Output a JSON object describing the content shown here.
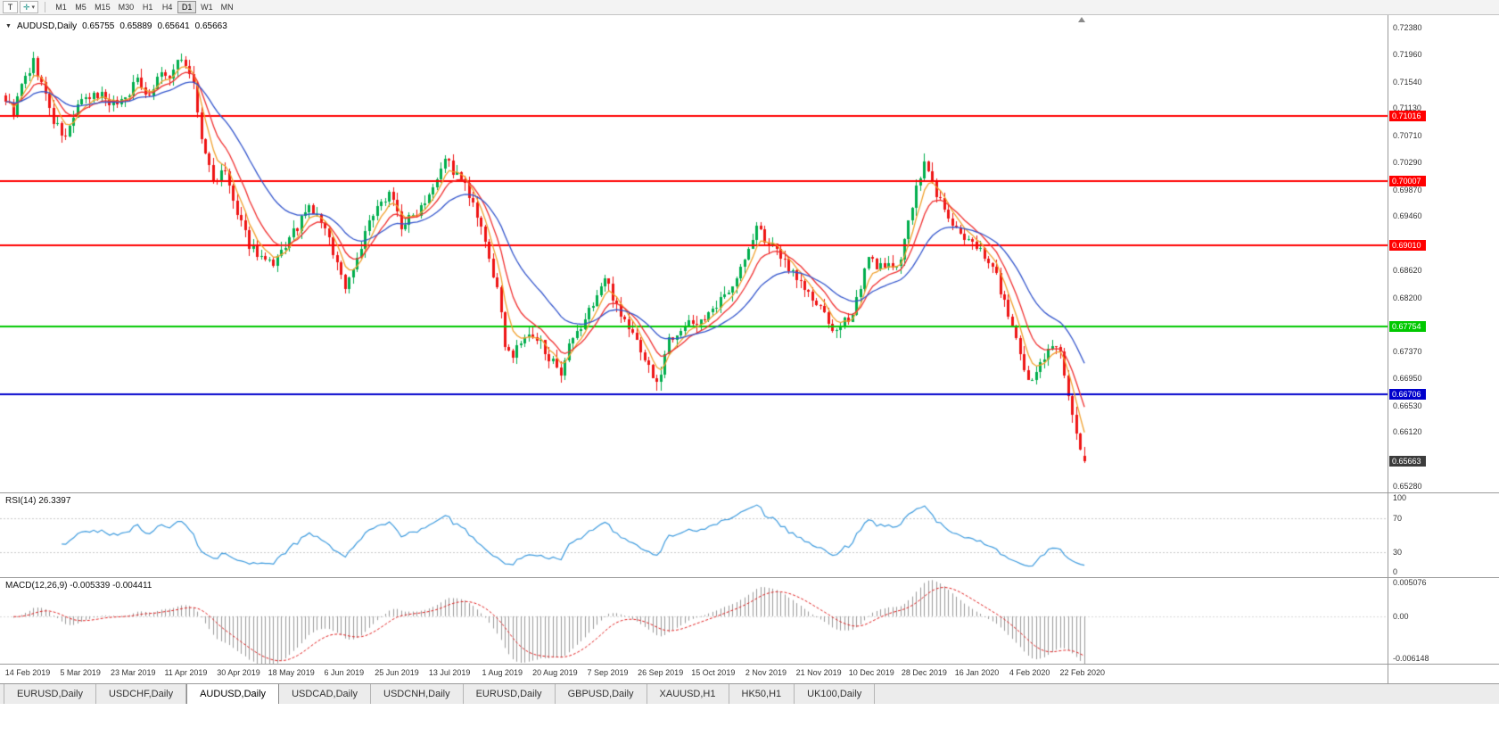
{
  "toolbar": {
    "text_tool_label": "T",
    "pointer_tool_glyph": "✛",
    "dropdown_glyph": "▾",
    "timeframes": [
      {
        "label": "M1"
      },
      {
        "label": "M5"
      },
      {
        "label": "M15"
      },
      {
        "label": "M30"
      },
      {
        "label": "H1"
      },
      {
        "label": "H4"
      },
      {
        "label": "D1",
        "active": true
      },
      {
        "label": "W1"
      },
      {
        "label": "MN"
      }
    ]
  },
  "chart": {
    "collapse_glyph": "▼",
    "symbol_title": "AUDUSD,Daily",
    "ohlc": {
      "open": "0.65755",
      "high": "0.65889",
      "low": "0.65641",
      "close": "0.65663"
    },
    "price_axis_labels": [
      {
        "text": "0.72380",
        "price": 0.7238
      },
      {
        "text": "0.71960",
        "price": 0.7196
      },
      {
        "text": "0.71540",
        "price": 0.7154
      },
      {
        "text": "0.71130",
        "price": 0.7113
      },
      {
        "text": "0.70710",
        "price": 0.7071
      },
      {
        "text": "0.70290",
        "price": 0.7029
      },
      {
        "text": "0.69870",
        "price": 0.6987
      },
      {
        "text": "0.69460",
        "price": 0.6946
      },
      {
        "text": "0.68620",
        "price": 0.6862
      },
      {
        "text": "0.68200",
        "price": 0.682
      },
      {
        "text": "0.67370",
        "price": 0.6737
      },
      {
        "text": "0.66950",
        "price": 0.6695
      },
      {
        "text": "0.66530",
        "price": 0.6653
      },
      {
        "text": "0.66120",
        "price": 0.6612
      },
      {
        "text": "0.65280",
        "price": 0.6528
      }
    ]
  },
  "rsi": {
    "label": "RSI(14) 26.3397",
    "axis_labels": [
      {
        "text": "100",
        "value": 100
      },
      {
        "text": "70",
        "value": 70
      },
      {
        "text": "30",
        "value": 30
      },
      {
        "text": "0",
        "value": 0
      }
    ]
  },
  "macd": {
    "label": "MACD(12,26,9) -0.005339 -0.004411",
    "axis_labels": [
      {
        "text": "0.005076",
        "value": 0.005076
      },
      {
        "text": "0.00",
        "value": 0
      },
      {
        "text": "-0.006148",
        "value": -0.006148
      }
    ]
  },
  "date_axis": {
    "labels": [
      "14 Feb 2019",
      "5 Mar 2019",
      "23 Mar 2019",
      "11 Apr 2019",
      "30 Apr 2019",
      "18 May 2019",
      "6 Jun 2019",
      "25 Jun 2019",
      "13 Jul 2019",
      "1 Aug 2019",
      "20 Aug 2019",
      "7 Sep 2019",
      "26 Sep 2019",
      "15 Oct 2019",
      "2 Nov 2019",
      "21 Nov 2019",
      "10 Dec 2019",
      "28 Dec 2019",
      "16 Jan 2020",
      "4 Feb 2020",
      "22 Feb 2020"
    ]
  },
  "tabs": [
    {
      "label": "EURUSD,Daily"
    },
    {
      "label": "USDCHF,Daily"
    },
    {
      "label": "AUDUSD,Daily",
      "active": true
    },
    {
      "label": "USDCAD,Daily"
    },
    {
      "label": "USDCNH,Daily"
    },
    {
      "label": "EURUSD,Daily"
    },
    {
      "label": "GBPUSD,Daily"
    },
    {
      "label": "XAUUSD,H1"
    },
    {
      "label": "HK50,H1"
    },
    {
      "label": "UK100,Daily"
    }
  ],
  "chart_data": {
    "type": "candlestick",
    "symbol": "AUDUSD",
    "timeframe": "Daily",
    "bars": 271,
    "seed": 9,
    "price_range": [
      0.65184,
      0.72573
    ],
    "candle_colors": {
      "up": "#00AE4D",
      "down": "#EE1414"
    },
    "noise": {
      "close": 0.0008,
      "wick": 0.0013
    },
    "close_anchors": [
      [
        0,
        0.7128
      ],
      [
        2,
        0.7106
      ],
      [
        4,
        0.7148
      ],
      [
        7,
        0.7184
      ],
      [
        9,
        0.7152
      ],
      [
        12,
        0.7092
      ],
      [
        15,
        0.7066
      ],
      [
        18,
        0.7118
      ],
      [
        21,
        0.7128
      ],
      [
        24,
        0.7136
      ],
      [
        27,
        0.712
      ],
      [
        30,
        0.713
      ],
      [
        33,
        0.7158
      ],
      [
        36,
        0.7133
      ],
      [
        39,
        0.7172
      ],
      [
        41,
        0.7152
      ],
      [
        43,
        0.7193
      ],
      [
        45,
        0.7182
      ],
      [
        47,
        0.7148
      ],
      [
        49,
        0.7064
      ],
      [
        52,
        0.7002
      ],
      [
        55,
        0.7014
      ],
      [
        58,
        0.6946
      ],
      [
        61,
        0.6903
      ],
      [
        64,
        0.6882
      ],
      [
        67,
        0.6866
      ],
      [
        70,
        0.6901
      ],
      [
        73,
        0.6929
      ],
      [
        76,
        0.6959
      ],
      [
        79,
        0.6939
      ],
      [
        82,
        0.6892
      ],
      [
        85,
        0.6836
      ],
      [
        88,
        0.6882
      ],
      [
        91,
        0.6936
      ],
      [
        94,
        0.6963
      ],
      [
        96,
        0.6989
      ],
      [
        99,
        0.6931
      ],
      [
        102,
        0.6946
      ],
      [
        105,
        0.6973
      ],
      [
        108,
        0.7009
      ],
      [
        110,
        0.7039
      ],
      [
        112,
        0.7016
      ],
      [
        115,
        0.6993
      ],
      [
        118,
        0.6943
      ],
      [
        121,
        0.6881
      ],
      [
        123,
        0.683
      ],
      [
        125,
        0.675
      ],
      [
        127,
        0.673
      ],
      [
        130,
        0.676
      ],
      [
        134,
        0.6749
      ],
      [
        137,
        0.6719
      ],
      [
        139,
        0.6693
      ],
      [
        141,
        0.6743
      ],
      [
        144,
        0.6773
      ],
      [
        147,
        0.6813
      ],
      [
        150,
        0.6849
      ],
      [
        152,
        0.6823
      ],
      [
        155,
        0.6783
      ],
      [
        158,
        0.6753
      ],
      [
        161,
        0.6713
      ],
      [
        163,
        0.6683
      ],
      [
        166,
        0.6756
      ],
      [
        169,
        0.6773
      ],
      [
        173,
        0.6783
      ],
      [
        177,
        0.6796
      ],
      [
        181,
        0.6833
      ],
      [
        185,
        0.6876
      ],
      [
        188,
        0.6929
      ],
      [
        191,
        0.6903
      ],
      [
        194,
        0.6883
      ],
      [
        198,
        0.6853
      ],
      [
        202,
        0.6816
      ],
      [
        205,
        0.6793
      ],
      [
        208,
        0.6763
      ],
      [
        212,
        0.6799
      ],
      [
        216,
        0.6879
      ],
      [
        220,
        0.6863
      ],
      [
        224,
        0.6881
      ],
      [
        227,
        0.6963
      ],
      [
        230,
        0.7029
      ],
      [
        233,
        0.6983
      ],
      [
        236,
        0.6943
      ],
      [
        240,
        0.6906
      ],
      [
        244,
        0.6899
      ],
      [
        248,
        0.6853
      ],
      [
        252,
        0.6773
      ],
      [
        255,
        0.6701
      ],
      [
        257,
        0.6688
      ],
      [
        259,
        0.6723
      ],
      [
        262,
        0.6748
      ],
      [
        264,
        0.6731
      ],
      [
        266,
        0.6663
      ],
      [
        268,
        0.6613
      ],
      [
        270,
        0.65663
      ]
    ],
    "last_ohlc": {
      "open": 0.65755,
      "high": 0.65889,
      "low": 0.65641,
      "close": 0.65663
    },
    "moving_averages": [
      {
        "period": 5,
        "type": "ema",
        "color": "#F0A02C",
        "name": "fast-ma-orange"
      },
      {
        "period": 10,
        "type": "ema",
        "color": "#F03030",
        "name": "mid-ma-red"
      },
      {
        "period": 24,
        "type": "ema",
        "color": "#3355CC",
        "name": "slow-ma-blue"
      }
    ],
    "horizontal_levels": [
      {
        "label": "0.71016",
        "price": 0.71016,
        "color": "#FF0000"
      },
      {
        "label": "0.70007",
        "price": 0.70007,
        "color": "#FF0000"
      },
      {
        "label": "0.69010",
        "price": 0.6901,
        "color": "#FF0000"
      },
      {
        "label": "0.67754",
        "price": 0.67754,
        "color": "#00C800"
      },
      {
        "label": "0.66706",
        "price": 0.66706,
        "color": "#0000CC"
      }
    ],
    "last_price_label": {
      "text": "0.65663",
      "price": 0.65663,
      "color": "#3C3C3C"
    },
    "indicators": {
      "rsi": {
        "period": 14,
        "value": 26.3397,
        "color": "#3E9BDE",
        "levels": [
          70,
          30
        ],
        "range": [
          0,
          100
        ]
      },
      "macd": {
        "fast": 12,
        "slow": 26,
        "signal": 9,
        "value_main": -0.005339,
        "value_signal": -0.004411,
        "range": [
          -0.006148,
          0.005076
        ],
        "histogram_color": "#9A9A9A",
        "signal_color": "#E02020"
      }
    }
  }
}
